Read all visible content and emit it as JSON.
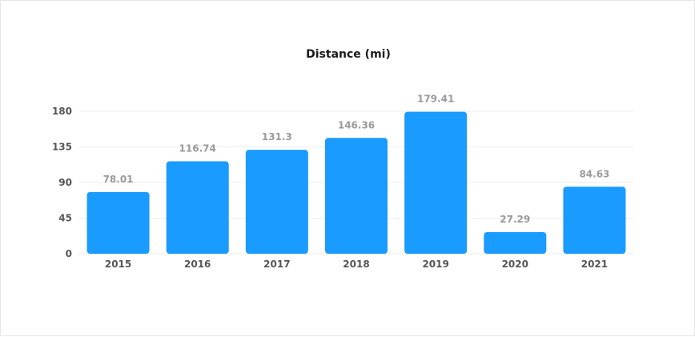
{
  "chart_data": {
    "type": "bar",
    "title": "Distance (mi)",
    "xlabel": "",
    "ylabel": "",
    "categories": [
      "2015",
      "2016",
      "2017",
      "2018",
      "2019",
      "2020",
      "2021"
    ],
    "series": [
      {
        "values": [
          78.01,
          116.74,
          131.3,
          146.36,
          179.41,
          27.29,
          84.63
        ]
      }
    ],
    "ylim": [
      0,
      180
    ],
    "yticks": [
      0,
      45,
      90,
      135,
      180
    ],
    "grid": true,
    "legend": "none",
    "colors": {
      "bar": "#1a9bff",
      "grid": "#eeeeee",
      "value_label": "#9a9a9a",
      "tick_label": "#555555"
    }
  }
}
